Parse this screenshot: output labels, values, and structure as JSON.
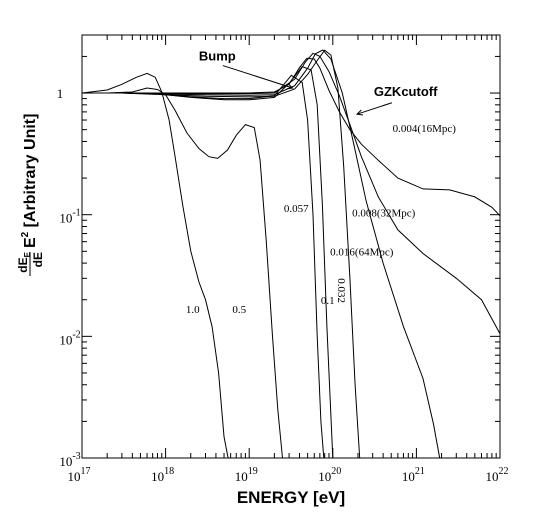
{
  "chart_data": {
    "type": "line",
    "xlabel": "ENERGY  [eV]",
    "ylabel_prefix": "dE",
    "ylabel_sub_top": "E",
    "ylabel_denominator": "dE",
    "ylabel_exp": "2",
    "ylabel_suffix": " [Arbitrary Unit]",
    "x_scale": "log",
    "y_scale": "log",
    "xlim": [
      1e+17,
      1e+22
    ],
    "ylim": [
      0.001,
      3
    ],
    "x_ticks": [
      {
        "base": "10",
        "exp": "17",
        "value": 1e+17
      },
      {
        "base": "10",
        "exp": "18",
        "value": 1e+18
      },
      {
        "base": "10",
        "exp": "19",
        "value": 1e+19
      },
      {
        "base": "10",
        "exp": "20",
        "value": 1e+20
      },
      {
        "base": "10",
        "exp": "21",
        "value": 1e+21
      },
      {
        "base": "10",
        "exp": "22",
        "value": 1e+22
      }
    ],
    "y_ticks": [
      {
        "base": "10",
        "exp": "-3",
        "value": 0.001
      },
      {
        "base": "10",
        "exp": "-2",
        "value": 0.01
      },
      {
        "base": "10",
        "exp": "-1",
        "value": 0.1
      },
      {
        "base": "1",
        "exp": "",
        "value": 1
      }
    ],
    "annotations": [
      {
        "id": "bump",
        "text": "Bump",
        "x": 2.5e+18,
        "y": 1.85,
        "arrow_to": [
          3.3e+19,
          1.1
        ],
        "color": "#000000"
      },
      {
        "id": "gzk",
        "text": "GZKcutoff",
        "x": 3.1e+20,
        "y": 0.95,
        "arrow_to": [
          1.95e+20,
          0.67
        ],
        "color": "#ff0000"
      }
    ],
    "series": [
      {
        "label": "0.004(16Mpc)",
        "label_pos": [
          5.2e+20,
          0.48
        ],
        "x": [
          1e+17,
          3e+17,
          1e+18,
          3e+18,
          1e+19,
          2e+19,
          3e+19,
          4e+19,
          4.9e+19,
          6e+19,
          7e+19,
          9e+19,
          1.2e+20,
          1.6e+20,
          2.2e+20,
          3.5e+20,
          6e+20,
          1.2e+21,
          2.5e+21,
          5e+21,
          8e+21,
          1e+22
        ],
        "y": [
          1,
          1,
          1,
          1,
          1,
          1.02,
          1.18,
          1.62,
          1.93,
          1.9,
          1.6,
          1.05,
          0.7,
          0.5,
          0.38,
          0.28,
          0.2,
          0.163,
          0.16,
          0.14,
          0.115,
          0.098
        ]
      },
      {
        "label": "0.008(32Mpc)",
        "label_pos": [
          1.7e+20,
          0.097
        ],
        "x": [
          1e+17,
          3e+17,
          1e+18,
          3e+18,
          1e+19,
          2e+19,
          3.5e+19,
          4.7e+19,
          5.8e+19,
          7e+19,
          9e+19,
          1.2e+20,
          1.6e+20,
          2.2e+20,
          3.5e+20,
          6e+20,
          1.2e+21,
          3e+21,
          6e+21,
          1e+22
        ],
        "y": [
          1,
          1,
          0.99,
          0.99,
          0.99,
          1.0,
          1.3,
          1.8,
          2.12,
          2.0,
          1.5,
          0.95,
          0.55,
          0.3,
          0.14,
          0.075,
          0.048,
          0.03,
          0.02,
          0.0105
        ]
      },
      {
        "label": "0.016(64Mpc)",
        "label_pos": [
          9.3e+19,
          0.046
        ],
        "x": [
          1e+17,
          3e+17,
          1e+18,
          3e+18,
          1e+19,
          2e+19,
          3.5e+19,
          5e+19,
          6.2e+19,
          7.6e+19,
          9.5e+19,
          1.3e+20,
          1.8e+20,
          2.5e+20,
          4e+20,
          7e+20,
          1.2e+21,
          1.6e+21,
          1.9e+21
        ],
        "y": [
          1,
          1,
          0.98,
          0.97,
          0.96,
          0.97,
          1.15,
          1.6,
          2.1,
          2.26,
          1.9,
          1.0,
          0.37,
          0.13,
          0.04,
          0.012,
          0.0045,
          0.0019,
          0.001
        ]
      },
      {
        "label": "0.032",
        "label_pos": [
          1.15e+20,
          0.03
        ],
        "label_rotate": 90,
        "x": [
          1e+17,
          3e+17,
          1e+18,
          3e+18,
          1e+19,
          2e+19,
          3.5e+19,
          5e+19,
          6.5e+19,
          8e+19,
          9.5e+19,
          1.15e+20,
          1.35e+20,
          1.6e+20,
          1.85e+20,
          2.1e+20
        ],
        "y": [
          1,
          1,
          0.97,
          0.94,
          0.93,
          0.94,
          1.08,
          1.42,
          1.85,
          2.25,
          2.05,
          1.1,
          0.25,
          0.03,
          0.004,
          0.001
        ]
      },
      {
        "label": "0.1",
        "label_pos": [
          7.2e+19,
          0.0185
        ],
        "x": [
          1e+17,
          3e+17,
          6e+17,
          1e+18,
          2e+18,
          5e+18,
          1e+19,
          2e+19,
          3e+19,
          4.3e+19,
          5.5e+19,
          6.5e+19,
          7.5e+19,
          8.5e+19,
          9.3e+19,
          1e+20
        ],
        "y": [
          1,
          1,
          1,
          0.97,
          0.92,
          0.88,
          0.88,
          0.92,
          1.2,
          1.65,
          1.55,
          0.8,
          0.12,
          0.012,
          0.003,
          0.001
        ]
      },
      {
        "label": "0.057",
        "label_pos": [
          2.6e+19,
          0.105
        ],
        "x": [
          1e+17,
          3e+17,
          6e+17,
          1e+18,
          2e+18,
          5e+18,
          1e+19,
          2e+19,
          3.2e+19,
          4.3e+19,
          5e+19,
          5.8e+19,
          6.5e+19,
          7.2e+19,
          7.8e+19
        ],
        "y": [
          1,
          1,
          1,
          0.97,
          0.93,
          0.9,
          0.9,
          0.95,
          1.4,
          1.22,
          0.6,
          0.1,
          0.01,
          0.002,
          0.001
        ]
      },
      {
        "label": "0.5",
        "label_pos": [
          6.3e+18,
          0.0155
        ],
        "x": [
          1e+17,
          2e+17,
          4e+17,
          6e+17,
          8e+17,
          1e+18,
          1.3e+18,
          1.8e+18,
          2.5e+18,
          3.3e+18,
          4.2e+18,
          5.5e+18,
          7e+18,
          9e+18,
          1.15e+19,
          1.35e+19,
          1.6e+19,
          1.9e+19,
          2.2e+19,
          2.5e+19
        ],
        "y": [
          1,
          1,
          1.02,
          1.1,
          1.07,
          0.97,
          0.72,
          0.47,
          0.35,
          0.3,
          0.29,
          0.34,
          0.45,
          0.55,
          0.52,
          0.28,
          0.06,
          0.01,
          0.0025,
          0.001
        ]
      },
      {
        "label": "1.0",
        "label_pos": [
          1.75e+18,
          0.0155
        ],
        "x": [
          1e+17,
          2e+17,
          3e+17,
          4.5e+17,
          6e+17,
          7.5e+17,
          9e+17,
          1.1e+18,
          1.3e+18,
          1.6e+18,
          2e+18,
          2.5e+18,
          3e+18,
          3.6e+18,
          4.3e+18,
          5e+18,
          5.6e+18
        ],
        "y": [
          1,
          1.06,
          1.18,
          1.35,
          1.45,
          1.35,
          1.02,
          0.6,
          0.3,
          0.12,
          0.05,
          0.028,
          0.02,
          0.012,
          0.005,
          0.0015,
          0.001
        ]
      }
    ]
  }
}
